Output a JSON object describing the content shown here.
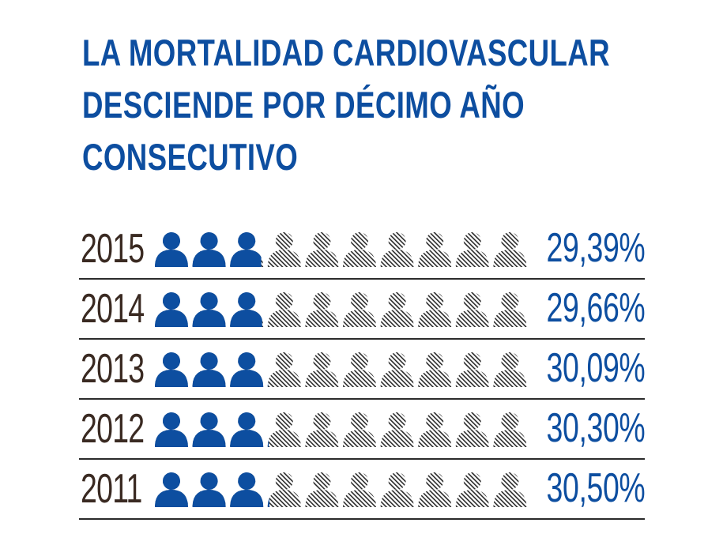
{
  "title_lines": [
    "LA MORTALIDAD CARDIOVASCULAR",
    "DESCIENDE POR DÉCIMO AÑO",
    "CONSECUTIVO"
  ],
  "colors": {
    "title": "#0d4ea0",
    "filled_icon": "#0d4ea0",
    "hatched_icon": "#2b2b2b",
    "year_text": "#3a2a22",
    "percent_text": "#0d4ea0",
    "divider": "#2b2b2b"
  },
  "icon_semantic": "person-icon",
  "chart_data": {
    "type": "pictogram",
    "title": "LA MORTALIDAD CARDIOVASCULAR DESCIENDE POR DÉCIMO AÑO CONSECUTIVO",
    "icons_per_row": 10,
    "unit": "%",
    "categories": [
      "2015",
      "2014",
      "2013",
      "2012",
      "2011"
    ],
    "values": [
      29.39,
      29.66,
      30.09,
      30.3,
      30.5
    ],
    "labels": [
      "29,39%",
      "29,66%",
      "30,09%",
      "30,30%",
      "30,50%"
    ]
  }
}
